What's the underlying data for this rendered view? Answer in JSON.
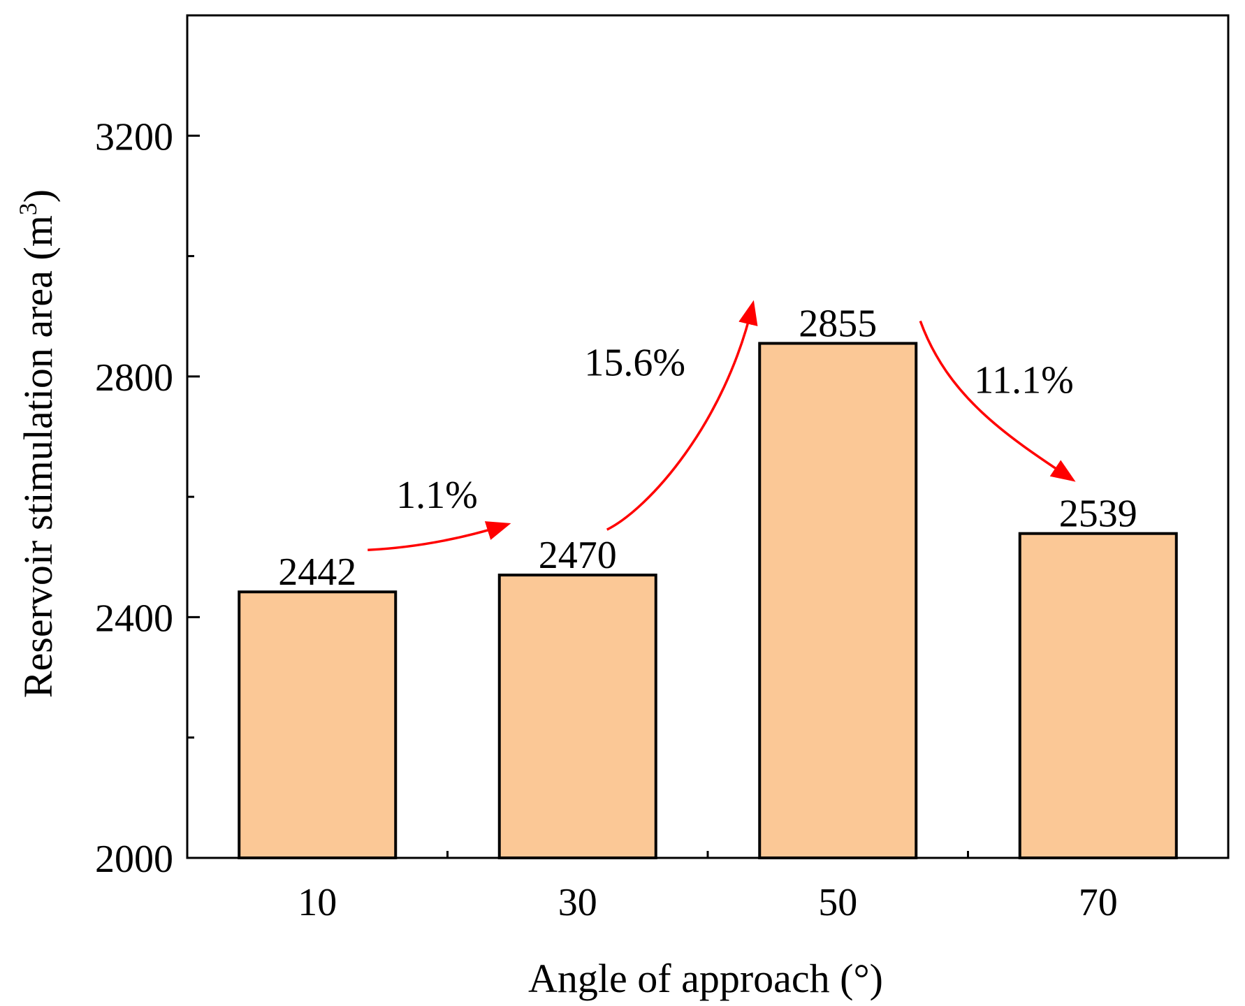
{
  "chart_data": {
    "type": "bar",
    "title": "",
    "xlabel": "Angle of approach (°)",
    "ylabel": "Reservoir stimulation area (m",
    "ylabel_sup": "3",
    "ylabel_close": ")",
    "categories": [
      "10",
      "30",
      "50",
      "70"
    ],
    "values": [
      2442,
      2470,
      2855,
      2539
    ],
    "value_labels": [
      "2442",
      "2470",
      "2855",
      "2539"
    ],
    "ylim": [
      2000,
      3400
    ],
    "yticks_major": [
      2000,
      2400,
      2800,
      3200
    ],
    "yticks_major_labels": [
      "2000",
      "2400",
      "2800",
      "3200"
    ],
    "yticks_minor": [
      2200,
      2600,
      3000
    ],
    "grid": false,
    "bar_color": "#FBC896",
    "edge_color": "#000000",
    "arrow_color": "#FF0000",
    "annotations": [
      {
        "from": 0,
        "to": 1,
        "text": "1.1%"
      },
      {
        "from": 1,
        "to": 2,
        "text": "15.6%"
      },
      {
        "from": 2,
        "to": 3,
        "text": "11.1%"
      }
    ]
  }
}
